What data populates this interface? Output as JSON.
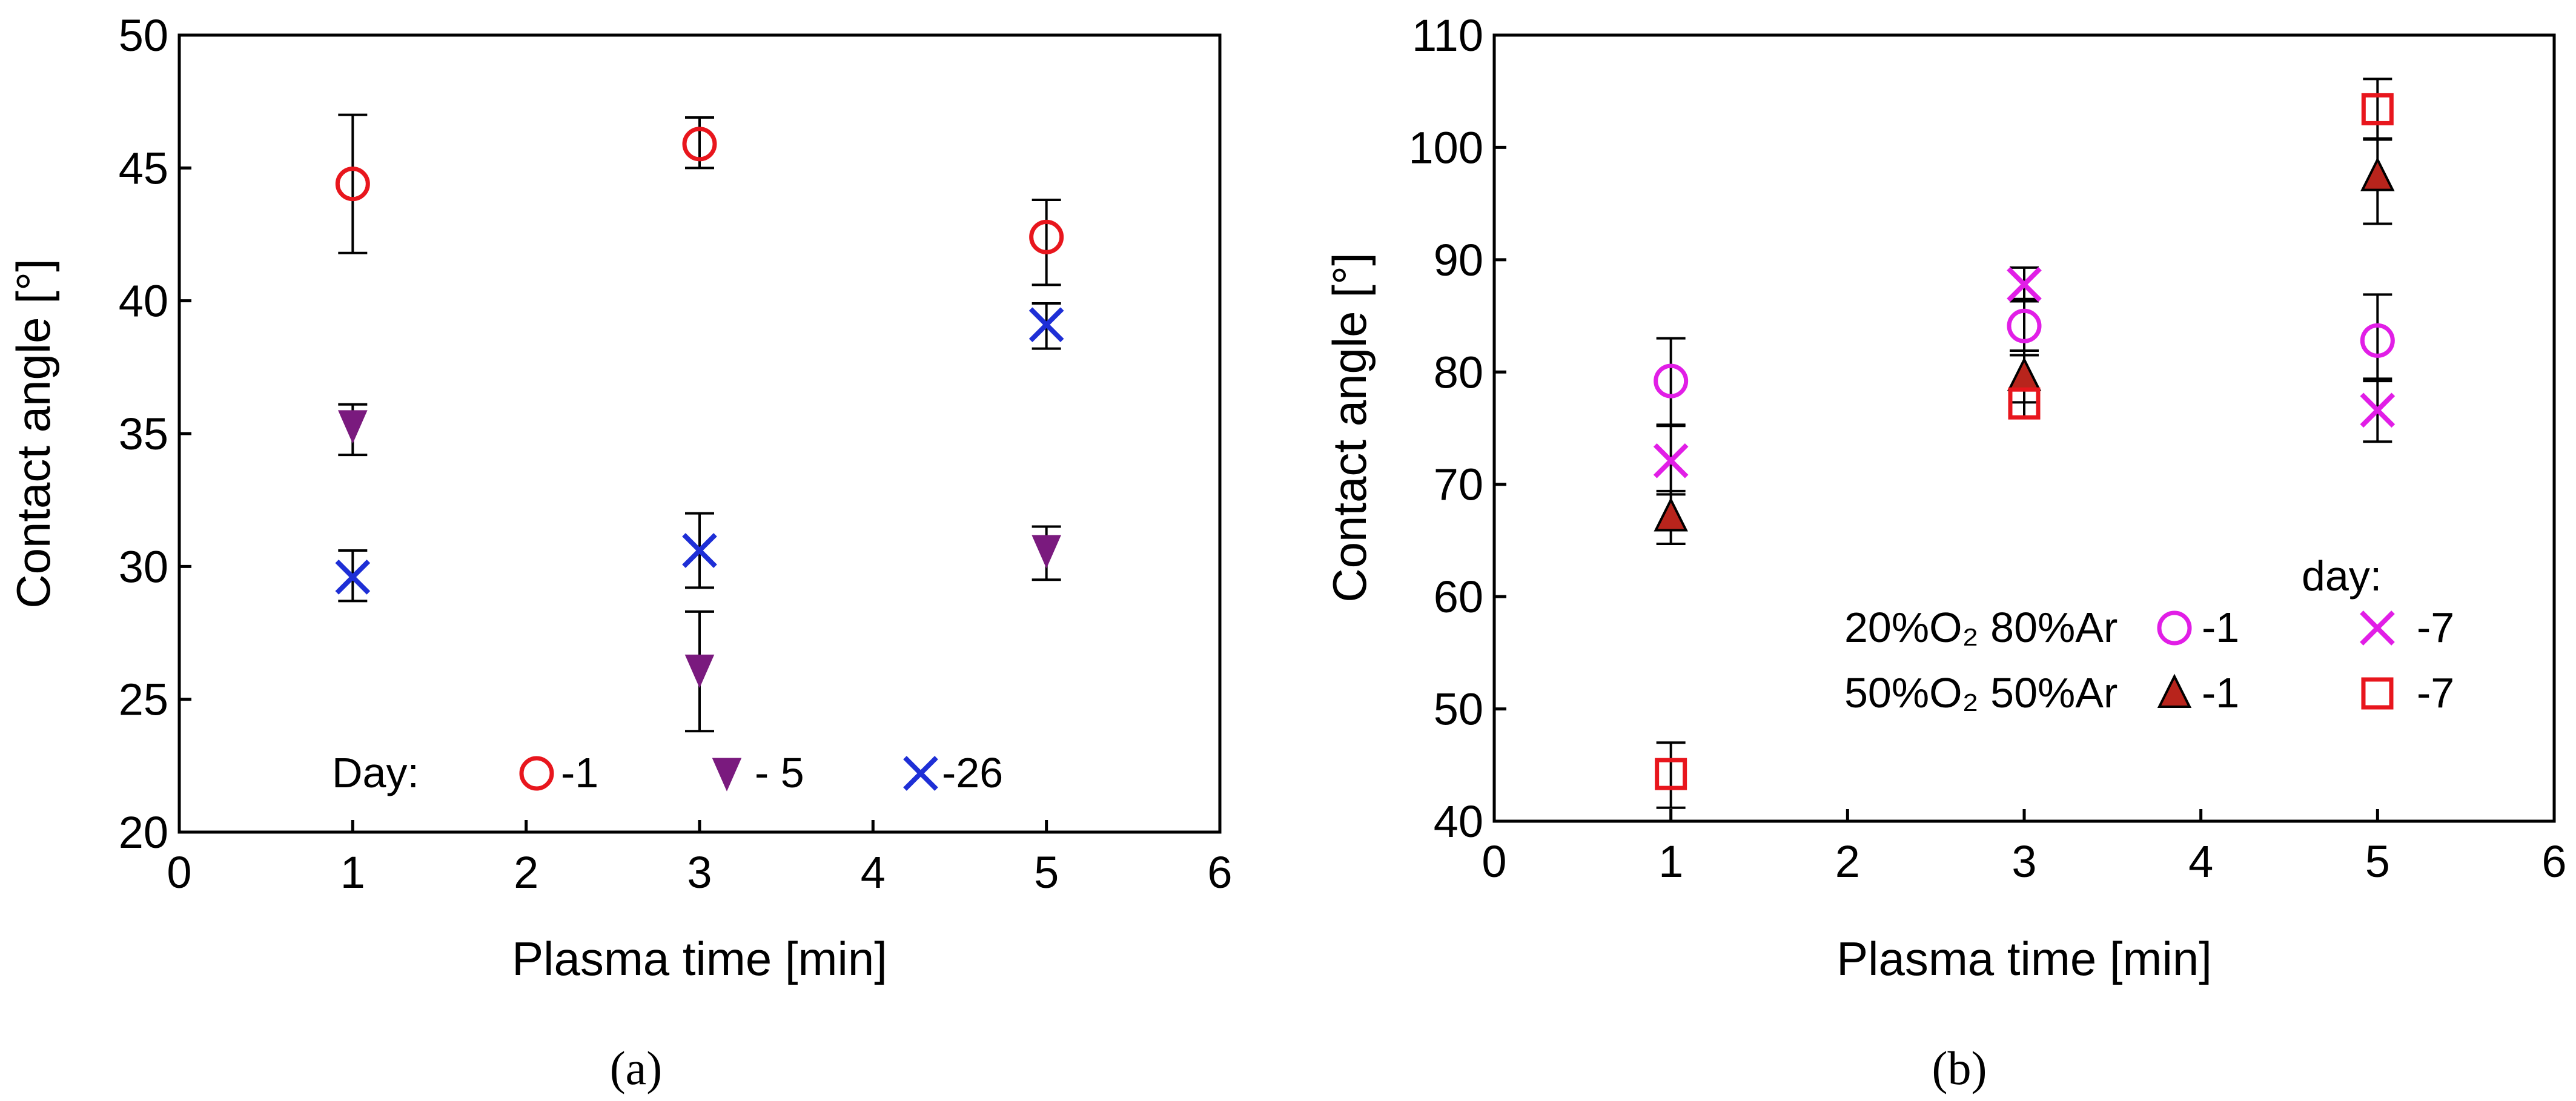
{
  "chart_data": [
    {
      "type": "scatter",
      "caption": "(a)",
      "xlabel": "Plasma time [min]",
      "ylabel": "Contact angle [°]",
      "xlim": [
        0,
        6
      ],
      "ylim": [
        20,
        50
      ],
      "xticks": [
        0,
        1,
        2,
        3,
        4,
        5,
        6
      ],
      "yticks": [
        20,
        25,
        30,
        35,
        40,
        45,
        50
      ],
      "grid": false,
      "legend": {
        "title": "Day:",
        "position": "bottom",
        "labels": [
          "-1",
          "- 5",
          "-26"
        ]
      },
      "series": [
        {
          "name": "-1",
          "marker": "circle-open",
          "color": "#e8161d",
          "x": [
            1,
            3,
            5
          ],
          "y": [
            44.4,
            45.9,
            42.4
          ],
          "err_low": [
            41.8,
            45.0,
            40.6
          ],
          "err_high": [
            47.0,
            46.9,
            43.8
          ]
        },
        {
          "name": "- 5",
          "marker": "triangle-down",
          "color": "#7a1a7e",
          "x": [
            1,
            3,
            5
          ],
          "y": [
            35.3,
            26.1,
            30.6
          ],
          "err_low": [
            34.2,
            23.8,
            29.5
          ],
          "err_high": [
            36.1,
            28.3,
            31.5
          ]
        },
        {
          "name": "-26",
          "marker": "x",
          "color": "#1e2fd6",
          "x": [
            1,
            3,
            5
          ],
          "y": [
            29.6,
            30.6,
            39.1
          ],
          "err_low": [
            28.7,
            29.2,
            38.2
          ],
          "err_high": [
            30.6,
            32.0,
            39.9
          ]
        }
      ]
    },
    {
      "type": "scatter",
      "caption": "(b)",
      "xlabel": "Plasma time [min]",
      "ylabel": "Contact angle [°]",
      "xlim": [
        0,
        6
      ],
      "ylim": [
        40,
        110
      ],
      "xticks": [
        0,
        1,
        2,
        3,
        4,
        5,
        6
      ],
      "yticks": [
        40,
        50,
        60,
        70,
        80,
        90,
        100,
        110
      ],
      "grid": false,
      "legend": {
        "title": "day:",
        "position": "bottom-right",
        "groups": [
          "20%O₂ 80%Ar",
          "50%O₂ 50%Ar"
        ],
        "labels": [
          "-1",
          "-7",
          "-1",
          "-7"
        ]
      },
      "series": [
        {
          "name": "20%O₂ 80%Ar -1",
          "marker": "circle-open",
          "color": "#e11ee6",
          "x": [
            1,
            3,
            5
          ],
          "y": [
            79.2,
            84.1,
            82.8
          ],
          "err_low": [
            75.3,
            81.5,
            79.2
          ],
          "err_high": [
            83.0,
            86.5,
            86.9
          ]
        },
        {
          "name": "20%O₂ 80%Ar -7",
          "marker": "x",
          "color": "#e11ee6",
          "x": [
            1,
            3,
            5
          ],
          "y": [
            72.1,
            87.8,
            76.6
          ],
          "err_low": [
            69.1,
            86.3,
            73.8
          ],
          "err_high": [
            75.2,
            89.3,
            79.4
          ]
        },
        {
          "name": "50%O₂ 50%Ar -1",
          "marker": "triangle-up",
          "color": "#b8241c",
          "x": [
            1,
            3,
            5
          ],
          "y": [
            67.1,
            79.6,
            97.4
          ],
          "err_low": [
            64.7,
            77.3,
            93.2
          ],
          "err_high": [
            69.4,
            81.9,
            100.8
          ]
        },
        {
          "name": "50%O₂ 50%Ar -7",
          "marker": "square-open",
          "color": "#e8161d",
          "x": [
            1,
            3,
            5
          ],
          "y": [
            44.2,
            77.2,
            103.4
          ],
          "err_low": [
            41.2,
            75.9,
            100.7
          ],
          "err_high": [
            47.0,
            78.6,
            106.1
          ]
        }
      ]
    }
  ]
}
